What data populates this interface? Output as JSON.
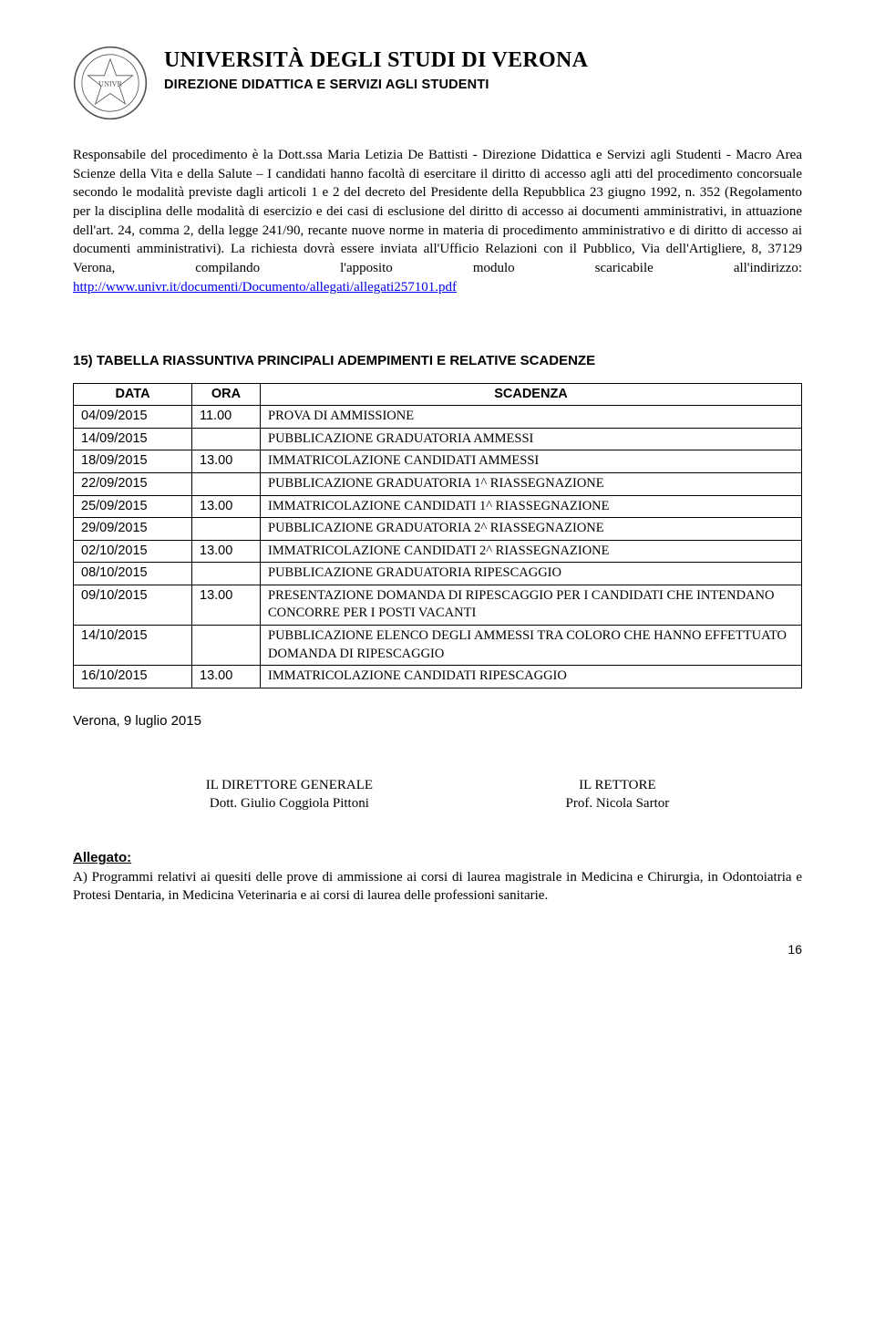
{
  "header": {
    "title": "UNIVERSITÀ DEGLI STUDI DI VERONA",
    "subtitle": "DIREZIONE DIDATTICA E SERVIZI AGLI STUDENTI"
  },
  "paragraph": {
    "lead": "Responsabile del procedimento è la Dott.ssa Maria Letizia De Battisti - Direzione Didattica e Servizi agli Studenti - Macro Area Scienze della Vita e della Salute – I candidati hanno facoltà di esercitare il diritto di accesso agli atti del procedimento concorsuale secondo le modalità previste dagli articoli 1 e 2 del decreto del Presidente della Repubblica 23 giugno 1992, n. 352 (Regolamento per la disciplina delle modalità di esercizio e dei casi di esclusione del diritto di accesso ai documenti amministrativi, in attuazione dell'art. 24, comma 2, della legge 241/90, recante nuove norme in materia di procedimento amministrativo e di diritto di accesso ai documenti amministrativi). La richiesta dovrà essere inviata all'Ufficio Relazioni con il Pubblico, Via dell'Artigliere, 8, 37129 Verona, compilando l'apposito modulo scaricabile all'indirizzo: ",
    "link_text": "http://www.univr.it/documenti/Documento/allegati/allegati257101.pdf"
  },
  "section15_title": "15) TABELLA RIASSUNTIVA PRINCIPALI ADEMPIMENTI E RELATIVE SCADENZE",
  "table": {
    "headers": {
      "data": "DATA",
      "ora": "ORA",
      "scadenza": "SCADENZA"
    },
    "rows": [
      {
        "data": "04/09/2015",
        "ora": "11.00",
        "scadenza": "PROVA DI AMMISSIONE"
      },
      {
        "data": "14/09/2015",
        "ora": "",
        "scadenza": "PUBBLICAZIONE GRADUATORIA AMMESSI"
      },
      {
        "data": "18/09/2015",
        "ora": "13.00",
        "scadenza": "IMMATRICOLAZIONE CANDIDATI AMMESSI"
      },
      {
        "data": "22/09/2015",
        "ora": "",
        "scadenza": "PUBBLICAZIONE GRADUATORIA 1^ RIASSEGNAZIONE"
      },
      {
        "data": "25/09/2015",
        "ora": "13.00",
        "scadenza": "IMMATRICOLAZIONE CANDIDATI 1^ RIASSEGNAZIONE"
      },
      {
        "data": "29/09/2015",
        "ora": "",
        "scadenza": "PUBBLICAZIONE GRADUATORIA 2^ RIASSEGNAZIONE"
      },
      {
        "data": "02/10/2015",
        "ora": "13.00",
        "scadenza": "IMMATRICOLAZIONE CANDIDATI 2^ RIASSEGNAZIONE"
      },
      {
        "data": "08/10/2015",
        "ora": "",
        "scadenza": "PUBBLICAZIONE GRADUATORIA RIPESCAGGIO"
      },
      {
        "data": "09/10/2015",
        "ora": "13.00",
        "scadenza": "PRESENTAZIONE DOMANDA DI RIPESCAGGIO PER I CANDIDATI  CHE INTENDANO CONCORRE PER I POSTI VACANTI"
      },
      {
        "data": "14/10/2015",
        "ora": "",
        "scadenza": "PUBBLICAZIONE ELENCO DEGLI AMMESSI TRA COLORO CHE HANNO EFFETTUATO DOMANDA DI RIPESCAGGIO"
      },
      {
        "data": "16/10/2015",
        "ora": "13.00",
        "scadenza": "IMMATRICOLAZIONE CANDIDATI RIPESCAGGIO"
      }
    ]
  },
  "date_city": "Verona, 9 luglio 2015",
  "signatures": {
    "left": {
      "role": "IL DIRETTORE GENERALE",
      "name": "Dott. Giulio Coggiola Pittoni"
    },
    "right": {
      "role": "IL RETTORE",
      "name": "Prof. Nicola Sartor"
    }
  },
  "allegato": {
    "title": "Allegato:",
    "text": "A) Programmi relativi ai quesiti delle prove di ammissione ai corsi di laurea magistrale in Medicina e Chirurgia, in Odontoiatria e Protesi Dentaria, in Medicina Veterinaria e ai corsi di laurea delle professioni sanitarie."
  },
  "page_number": "16",
  "colors": {
    "text": "#000000",
    "link": "#0000ee",
    "background": "#ffffff",
    "border": "#000000"
  }
}
